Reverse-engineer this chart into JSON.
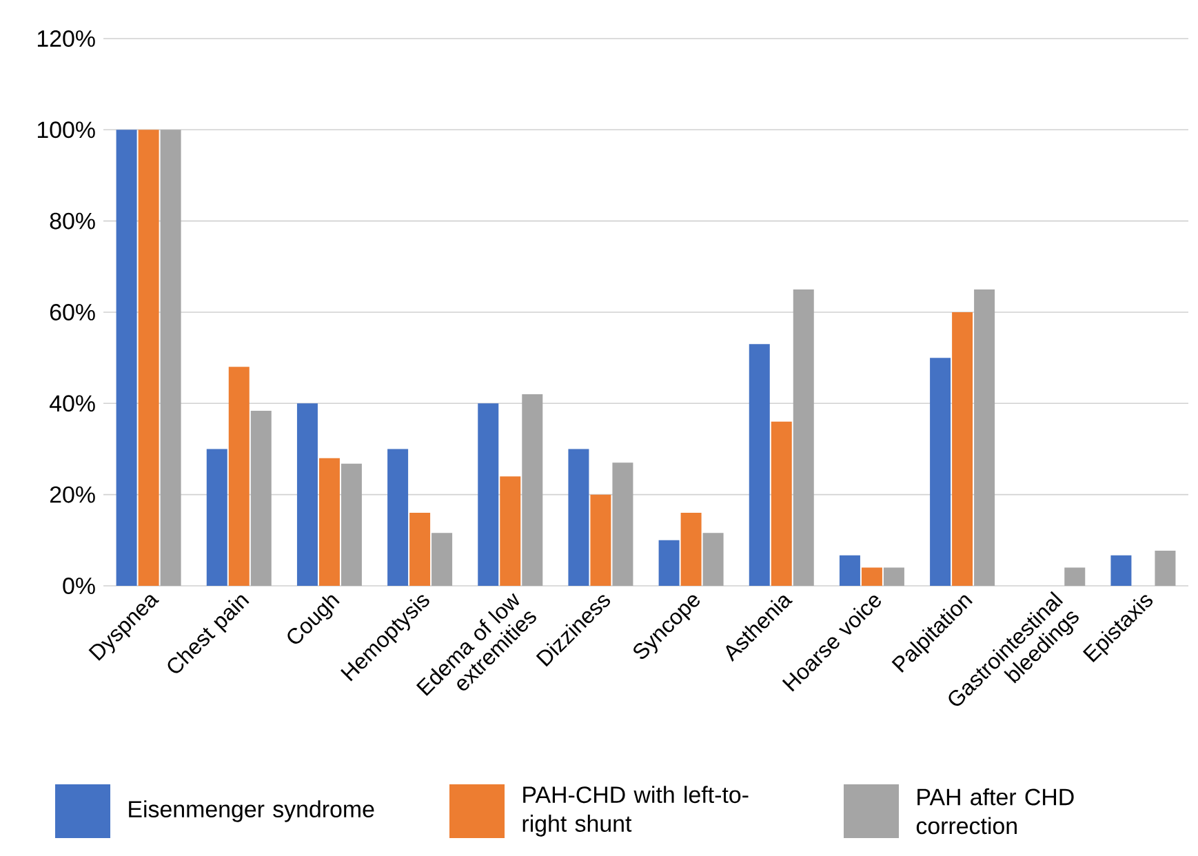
{
  "chart_data": {
    "type": "bar",
    "categories": [
      "Dyspnea",
      "Chest pain",
      "Cough",
      "Hemoptysis",
      "Edema of low extremities",
      "Dizziness",
      "Syncope",
      "Asthenia",
      "Hoarse voice",
      "Palpitation",
      "Gastrointestinal bleedings",
      "Epistaxis"
    ],
    "series": [
      {
        "name": "Eisenmenger syndrome",
        "color": "#4472c4",
        "values": [
          100,
          30,
          40,
          30,
          40,
          30,
          10,
          53,
          6.7,
          50,
          0,
          6.7
        ]
      },
      {
        "name": "PAH-CHD with left-to-right shunt",
        "color": "#ed7d31",
        "values": [
          100,
          48,
          28,
          16,
          24,
          20,
          16,
          36,
          4,
          60,
          0,
          0
        ]
      },
      {
        "name": "PAH after CHD correction",
        "color": "#a5a5a5",
        "values": [
          100,
          38.4,
          26.8,
          11.6,
          42,
          27,
          11.6,
          65,
          4,
          65,
          4,
          7.7
        ]
      }
    ],
    "ylim": [
      0,
      120
    ],
    "yticks": [
      {
        "value": 0,
        "label": "0%"
      },
      {
        "value": 20,
        "label": "20%"
      },
      {
        "value": 40,
        "label": "40%"
      },
      {
        "value": 60,
        "label": "60%"
      },
      {
        "value": 80,
        "label": "80%"
      },
      {
        "value": 100,
        "label": "100%"
      },
      {
        "value": 120,
        "label": "120%"
      }
    ],
    "grid": "y",
    "legend": "bottom"
  }
}
